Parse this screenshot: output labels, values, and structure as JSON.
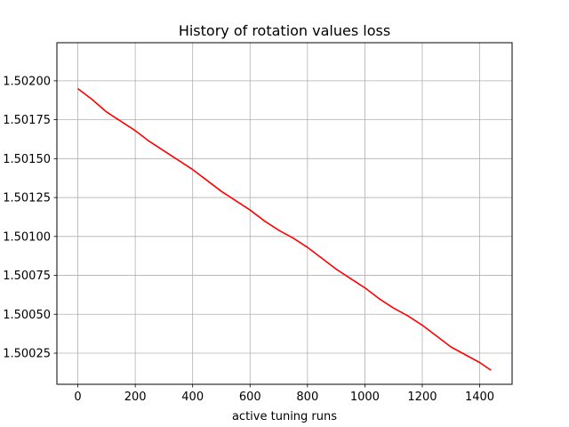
{
  "chart_data": {
    "type": "line",
    "title": "History of rotation values loss",
    "xlabel": "active tuning runs",
    "ylabel": "",
    "xlim": [
      -73,
      1513
    ],
    "ylim": [
      1.50005,
      1.502245
    ],
    "xticks": [
      0,
      200,
      400,
      600,
      800,
      1000,
      1200,
      1400
    ],
    "xtick_labels": [
      "0",
      "200",
      "400",
      "600",
      "800",
      "1000",
      "1200",
      "1400"
    ],
    "yticks": [
      1.50025,
      1.5005,
      1.50075,
      1.501,
      1.50125,
      1.5015,
      1.50175,
      1.502
    ],
    "ytick_labels": [
      "1.50025",
      "1.50050",
      "1.50075",
      "1.50100",
      "1.50125",
      "1.50150",
      "1.50175",
      "1.50200"
    ],
    "grid": true,
    "series": [
      {
        "color": "#ff0000",
        "x": [
          0,
          50,
          100,
          150,
          200,
          250,
          300,
          350,
          400,
          450,
          500,
          550,
          600,
          650,
          700,
          750,
          800,
          850,
          900,
          950,
          1000,
          1050,
          1100,
          1150,
          1200,
          1250,
          1300,
          1350,
          1400,
          1440
        ],
        "y": [
          1.50195,
          1.50188,
          1.5018,
          1.50174,
          1.50168,
          1.50161,
          1.50155,
          1.50149,
          1.50143,
          1.50136,
          1.50129,
          1.50123,
          1.50117,
          1.5011,
          1.50104,
          1.50099,
          1.50093,
          1.50086,
          1.50079,
          1.50073,
          1.50067,
          1.5006,
          1.50054,
          1.50049,
          1.50043,
          1.50036,
          1.50029,
          1.50024,
          1.50019,
          1.50014
        ]
      }
    ]
  }
}
